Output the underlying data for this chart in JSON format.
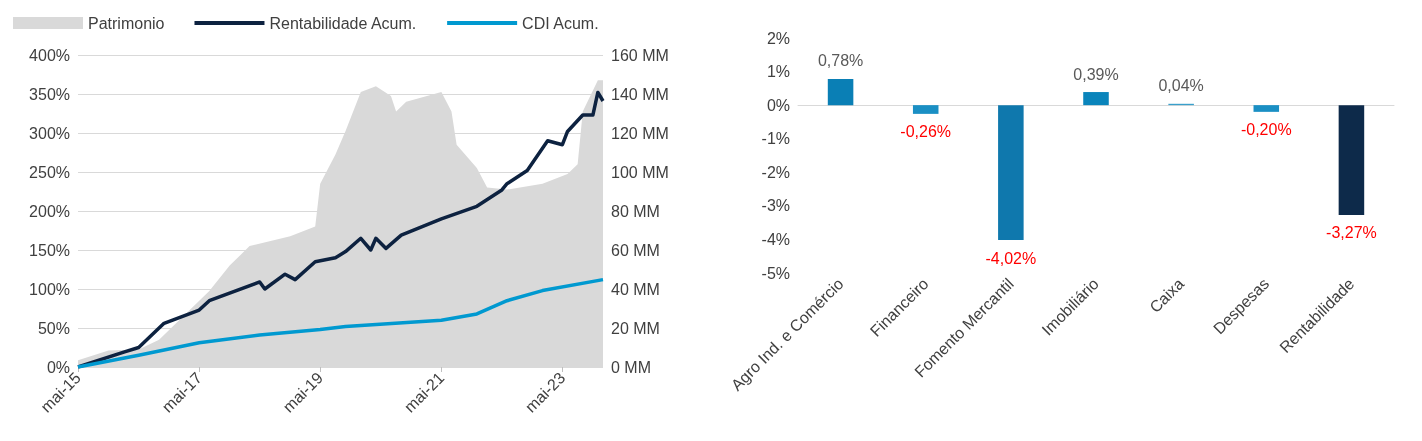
{
  "chart_data": [
    {
      "type": "line",
      "legend": "top left",
      "grid": "y",
      "xlim": [
        "2015-05",
        "2024-01"
      ],
      "xticks": [
        {
          "value": "2015-05",
          "label": "mai-15"
        },
        {
          "value": "2017-05",
          "label": "mai-17"
        },
        {
          "value": "2019-05",
          "label": "mai-19"
        },
        {
          "value": "2021-05",
          "label": "mai-21"
        },
        {
          "value": "2023-05",
          "label": "mai-23"
        }
      ],
      "ylim": [
        0,
        400
      ],
      "yticks": [
        {
          "value": 0,
          "label": "0%"
        },
        {
          "value": 50,
          "label": "50%"
        },
        {
          "value": 100,
          "label": "100%"
        },
        {
          "value": 150,
          "label": "150%"
        },
        {
          "value": 200,
          "label": "200%"
        },
        {
          "value": 250,
          "label": "250%"
        },
        {
          "value": 300,
          "label": "300%"
        },
        {
          "value": 350,
          "label": "350%"
        },
        {
          "value": 400,
          "label": "400%"
        }
      ],
      "y2lim": [
        0,
        160
      ],
      "y2ticks": [
        {
          "value": 0,
          "label": "0 MM"
        },
        {
          "value": 20,
          "label": "20 MM"
        },
        {
          "value": 40,
          "label": "40 MM"
        },
        {
          "value": 60,
          "label": "60 MM"
        },
        {
          "value": 80,
          "label": "80 MM"
        },
        {
          "value": 100,
          "label": "100 MM"
        },
        {
          "value": 120,
          "label": "120 MM"
        },
        {
          "value": 140,
          "label": "140 MM"
        },
        {
          "value": 160,
          "label": "160 MM"
        }
      ],
      "series": [
        {
          "name": "Patrimonio",
          "type": "area",
          "axis": "y2",
          "color": "#d9d9d9",
          "x": [
            "2015-05",
            "2015-11",
            "2016-05",
            "2016-09",
            "2017-07",
            "2017-11",
            "2018-03",
            "2018-11",
            "2019-04",
            "2019-05",
            "2019-08",
            "2019-10",
            "2020-01",
            "2020-04",
            "2020-07",
            "2020-08",
            "2020-10",
            "2021-05",
            "2021-07",
            "2021-08",
            "2021-12",
            "2022-02",
            "2022-06",
            "2023-01",
            "2023-06",
            "2023-08",
            "2023-09",
            "2023-12",
            "2024-01"
          ],
          "values": [
            3.5,
            8.5,
            9,
            14,
            39,
            52,
            62,
            67,
            72,
            94,
            109,
            121,
            141,
            144,
            139,
            131,
            136,
            141,
            131,
            114,
            102,
            92,
            91,
            94,
            99,
            104,
            131,
            147,
            147
          ]
        },
        {
          "name": "Rentabilidade Acum.",
          "color": "#0d2240",
          "x": [
            "2015-05",
            "2016-02",
            "2016-05",
            "2016-10",
            "2017-05",
            "2017-07",
            "2018-05",
            "2018-06",
            "2018-10",
            "2018-12",
            "2019-04",
            "2019-08",
            "2019-10",
            "2020-01",
            "2020-03",
            "2020-04",
            "2020-06",
            "2020-09",
            "2021-05",
            "2021-12",
            "2022-05",
            "2022-06",
            "2022-10",
            "2023-02",
            "2023-05",
            "2023-06",
            "2023-09",
            "2023-11",
            "2023-12",
            "2024-01"
          ],
          "values": [
            0,
            19,
            25,
            56,
            73,
            85,
            109,
            100,
            119,
            112,
            135,
            140,
            148,
            165,
            150,
            165,
            152,
            169,
            190,
            206,
            227,
            235,
            252,
            290,
            285,
            302,
            323,
            323,
            352,
            341
          ]
        },
        {
          "name": "CDI Acum.",
          "color": "#0099d0",
          "x": [
            "2015-05",
            "2016-05",
            "2017-05",
            "2018-05",
            "2019-05",
            "2019-10",
            "2021-05",
            "2021-12",
            "2022-06",
            "2023-01",
            "2024-01"
          ],
          "values": [
            0,
            15,
            31,
            41,
            48,
            52,
            60,
            68,
            85,
            98,
            112
          ]
        }
      ]
    },
    {
      "type": "bar",
      "categories": [
        "Agro Ind. e Comércio",
        "Financeiro",
        "Fomento Mercantil",
        "Imobiliário",
        "Caixa",
        "Despesas",
        "Rentabilidade"
      ],
      "values": [
        0.78,
        -0.26,
        -4.02,
        0.39,
        0.04,
        -0.2,
        -3.27
      ],
      "value_labels": [
        "0,78%",
        "-0,26%",
        "-4,02%",
        "0,39%",
        "0,04%",
        "-0,20%",
        "-3,27%"
      ],
      "colors": [
        "#0a7fb5",
        "#1a8fc4",
        "#0f78ad",
        "#0a84bb",
        "#3aa0cc",
        "#1a8fc4",
        "#0d2a4a"
      ],
      "ylim": [
        -5,
        2
      ],
      "yticks": [
        {
          "value": -5,
          "label": "-5%"
        },
        {
          "value": -4,
          "label": "-4%"
        },
        {
          "value": -3,
          "label": "-3%"
        },
        {
          "value": -2,
          "label": "-2%"
        },
        {
          "value": -1,
          "label": "-1%"
        },
        {
          "value": 0,
          "label": "0%"
        },
        {
          "value": 1,
          "label": "1%"
        },
        {
          "value": 2,
          "label": "2%"
        }
      ]
    }
  ]
}
